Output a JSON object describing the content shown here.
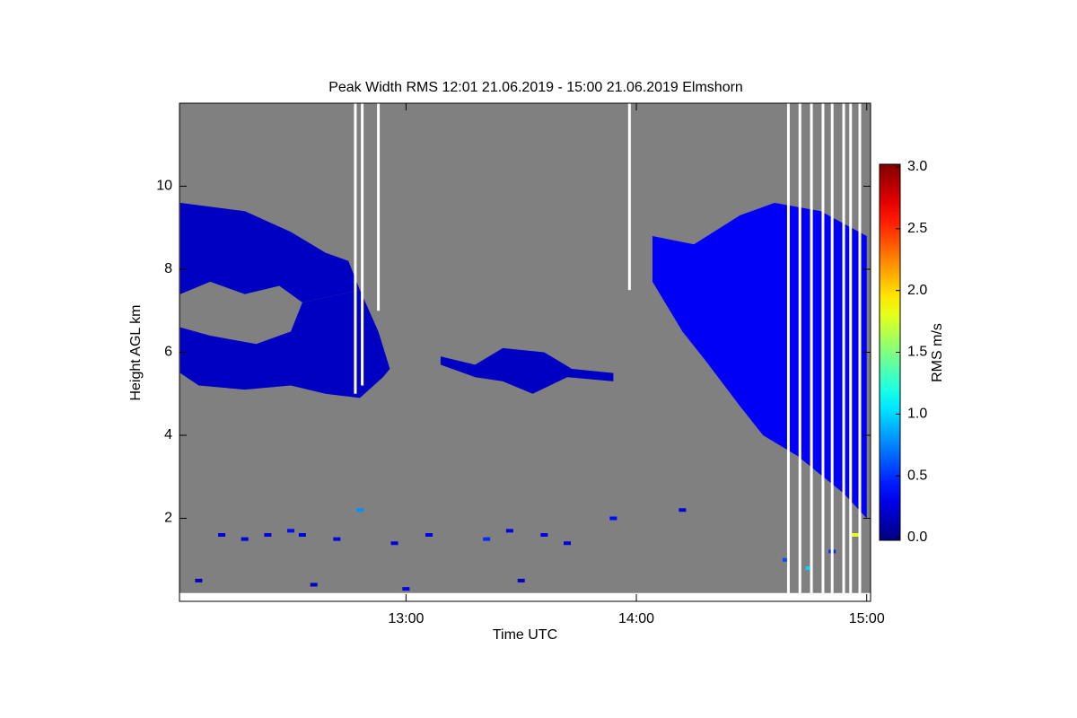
{
  "chart_data": {
    "type": "heatmap",
    "title": "Peak Width RMS   12:01 21.06.2019 - 15:00 21.06.2019 Elmshorn",
    "x_label": "Time UTC",
    "y_label": "Height AGL km",
    "colorbar_label": "RMS m/s",
    "xlim": [
      12.0167,
      15.0167
    ],
    "xticks": [
      {
        "value": 13,
        "label": "13:00"
      },
      {
        "value": 14,
        "label": "14:00"
      },
      {
        "value": 15,
        "label": "15:00"
      }
    ],
    "ylim": [
      0,
      12
    ],
    "yticks": [
      2,
      4,
      6,
      8,
      10
    ],
    "clim": [
      0,
      3
    ],
    "cticks": [
      {
        "value": 0,
        "label": "0.0"
      },
      0.5,
      {
        "value": 1,
        "label": "1.0"
      },
      1.5,
      {
        "value": 2,
        "label": "2.0"
      },
      2.5,
      {
        "value": 3,
        "label": "3.0"
      }
    ],
    "colormap": "jet",
    "no_data_below": 0.2,
    "regions": [
      {
        "t": [
          12.02,
          12.3,
          12.5,
          12.65,
          12.75,
          12.8,
          12.55,
          12.45,
          12.3,
          12.15,
          12.02
        ],
        "h": [
          9.6,
          9.4,
          8.9,
          8.4,
          8.2,
          7.5,
          7.2,
          7.6,
          7.4,
          7.7,
          7.4
        ],
        "value": 0.2
      },
      {
        "t": [
          12.02,
          12.15,
          12.35,
          12.5,
          12.55,
          12.8,
          12.88,
          12.93,
          12.9,
          12.8,
          12.65,
          12.5,
          12.3,
          12.1,
          12.02
        ],
        "h": [
          6.6,
          6.4,
          6.2,
          6.5,
          7.2,
          7.5,
          6.5,
          5.6,
          5.4,
          4.9,
          5.0,
          5.2,
          5.1,
          5.2,
          5.5
        ],
        "value": 0.2
      },
      {
        "t": [
          13.15,
          13.3,
          13.42,
          13.6,
          13.72,
          13.9,
          13.9,
          13.7,
          13.55,
          13.42,
          13.3,
          13.15
        ],
        "h": [
          5.9,
          5.7,
          6.1,
          6.0,
          5.6,
          5.5,
          5.3,
          5.4,
          5.0,
          5.3,
          5.4,
          5.7
        ],
        "value": 0.2
      },
      {
        "t": [
          14.07,
          14.25,
          14.45,
          14.6,
          14.8,
          15.0,
          15.0,
          14.9,
          14.7,
          14.55,
          14.45,
          14.3,
          14.2,
          14.07
        ],
        "h": [
          8.8,
          8.6,
          9.3,
          9.6,
          9.4,
          8.8,
          2.0,
          2.6,
          3.5,
          4.0,
          4.7,
          5.8,
          6.5,
          7.7
        ],
        "value": 0.35
      }
    ],
    "echoes": {
      "t": [
        12.2,
        12.3,
        12.4,
        12.5,
        12.55,
        12.7,
        12.8,
        12.95,
        13.1,
        13.35,
        13.45,
        13.6,
        13.7,
        13.9,
        14.2,
        12.1,
        12.6,
        13.0,
        13.5,
        14.65,
        14.75,
        14.85,
        14.95
      ],
      "h": [
        1.6,
        1.5,
        1.6,
        1.7,
        1.6,
        1.5,
        2.2,
        1.4,
        1.6,
        1.5,
        1.7,
        1.6,
        1.4,
        2.0,
        2.2,
        0.5,
        0.4,
        0.3,
        0.5,
        1.0,
        0.8,
        1.2,
        1.6
      ],
      "values": [
        0.3,
        0.3,
        0.3,
        0.4,
        0.3,
        0.3,
        0.8,
        0.3,
        0.3,
        0.5,
        0.3,
        0.3,
        0.3,
        0.4,
        0.3,
        0.2,
        0.2,
        0.3,
        0.2,
        0.6,
        1.0,
        0.5,
        1.8
      ]
    },
    "gaps": {
      "t": [
        12.78,
        12.81,
        12.88,
        13.97,
        14.66,
        14.71,
        14.76,
        14.81,
        14.85,
        14.9,
        14.93,
        14.97
      ],
      "h": [
        5.0,
        5.2,
        7.0,
        7.5,
        0,
        0,
        0,
        0,
        0,
        0,
        0,
        0
      ]
    }
  }
}
